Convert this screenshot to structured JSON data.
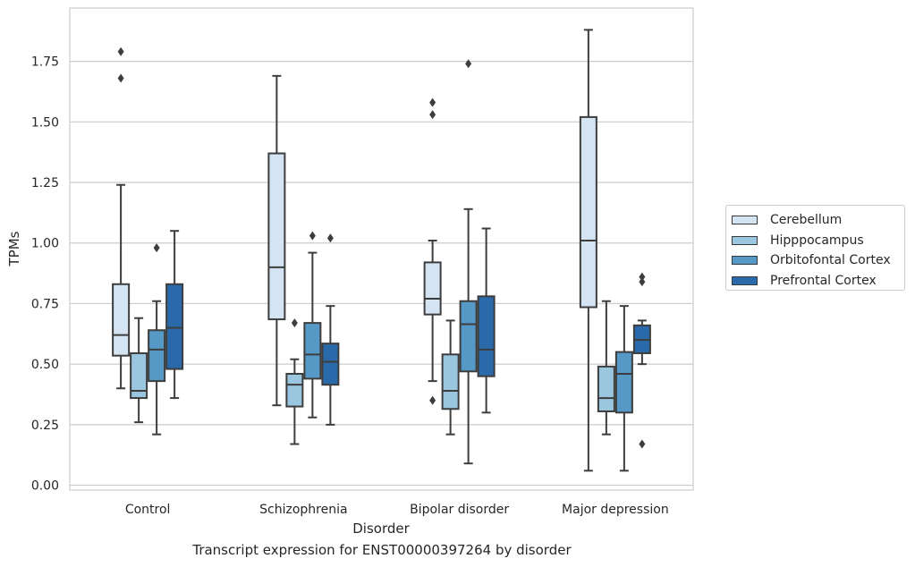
{
  "chart_data": {
    "type": "box",
    "caption": "Transcript expression for ENST00000397264 by disorder",
    "xlabel": "Disorder",
    "ylabel": "TPMs",
    "ylim": [
      -0.02,
      1.97
    ],
    "yticks": [
      "0.00",
      "0.25",
      "0.50",
      "0.75",
      "1.00",
      "1.25",
      "1.50",
      "1.75"
    ],
    "ytick_values": [
      0,
      0.25,
      0.5,
      0.75,
      1.0,
      1.25,
      1.5,
      1.75
    ],
    "grid": "horizontal",
    "legend_position": "right",
    "categories": [
      "Control",
      "Schizophrenia",
      "Bipolar disorder",
      "Major depression"
    ],
    "series": [
      {
        "name": "Cerebellum",
        "color": "#d4e4f3",
        "boxes": [
          {
            "whisker_low": 0.4,
            "q1": 0.535,
            "median": 0.62,
            "q3": 0.83,
            "whisker_high": 1.24,
            "outliers": [
              1.68,
              1.79
            ]
          },
          {
            "whisker_low": 0.33,
            "q1": 0.685,
            "median": 0.9,
            "q3": 1.37,
            "whisker_high": 1.69,
            "outliers": []
          },
          {
            "whisker_low": 0.43,
            "q1": 0.705,
            "median": 0.77,
            "q3": 0.92,
            "whisker_high": 1.01,
            "outliers": [
              0.35,
              1.53,
              1.58
            ]
          },
          {
            "whisker_low": 0.06,
            "q1": 0.735,
            "median": 1.01,
            "q3": 1.52,
            "whisker_high": 1.88,
            "outliers": []
          }
        ]
      },
      {
        "name": "Hipppocampus",
        "color": "#9ac6df",
        "boxes": [
          {
            "whisker_low": 0.26,
            "q1": 0.36,
            "median": 0.39,
            "q3": 0.545,
            "whisker_high": 0.69,
            "outliers": []
          },
          {
            "whisker_low": 0.17,
            "q1": 0.325,
            "median": 0.415,
            "q3": 0.46,
            "whisker_high": 0.52,
            "outliers": [
              0.67
            ]
          },
          {
            "whisker_low": 0.21,
            "q1": 0.315,
            "median": 0.39,
            "q3": 0.54,
            "whisker_high": 0.68,
            "outliers": []
          },
          {
            "whisker_low": 0.21,
            "q1": 0.305,
            "median": 0.36,
            "q3": 0.49,
            "whisker_high": 0.76,
            "outliers": []
          }
        ]
      },
      {
        "name": "Orbitofontal Cortex",
        "color": "#5799c6",
        "boxes": [
          {
            "whisker_low": 0.21,
            "q1": 0.43,
            "median": 0.56,
            "q3": 0.64,
            "whisker_high": 0.76,
            "outliers": [
              0.98
            ]
          },
          {
            "whisker_low": 0.28,
            "q1": 0.44,
            "median": 0.54,
            "q3": 0.67,
            "whisker_high": 0.96,
            "outliers": [
              1.03
            ]
          },
          {
            "whisker_low": 0.09,
            "q1": 0.47,
            "median": 0.665,
            "q3": 0.76,
            "whisker_high": 1.14,
            "outliers": [
              1.74
            ]
          },
          {
            "whisker_low": 0.06,
            "q1": 0.3,
            "median": 0.46,
            "q3": 0.55,
            "whisker_high": 0.74,
            "outliers": []
          }
        ]
      },
      {
        "name": "Prefrontal Cortex",
        "color": "#2b6aaa",
        "boxes": [
          {
            "whisker_low": 0.36,
            "q1": 0.48,
            "median": 0.65,
            "q3": 0.83,
            "whisker_high": 1.05,
            "outliers": []
          },
          {
            "whisker_low": 0.25,
            "q1": 0.415,
            "median": 0.51,
            "q3": 0.585,
            "whisker_high": 0.74,
            "outliers": [
              1.02
            ]
          },
          {
            "whisker_low": 0.3,
            "q1": 0.45,
            "median": 0.56,
            "q3": 0.78,
            "whisker_high": 1.06,
            "outliers": []
          },
          {
            "whisker_low": 0.5,
            "q1": 0.545,
            "median": 0.6,
            "q3": 0.66,
            "whisker_high": 0.68,
            "outliers": [
              0.17,
              0.84,
              0.86
            ]
          }
        ]
      }
    ]
  }
}
